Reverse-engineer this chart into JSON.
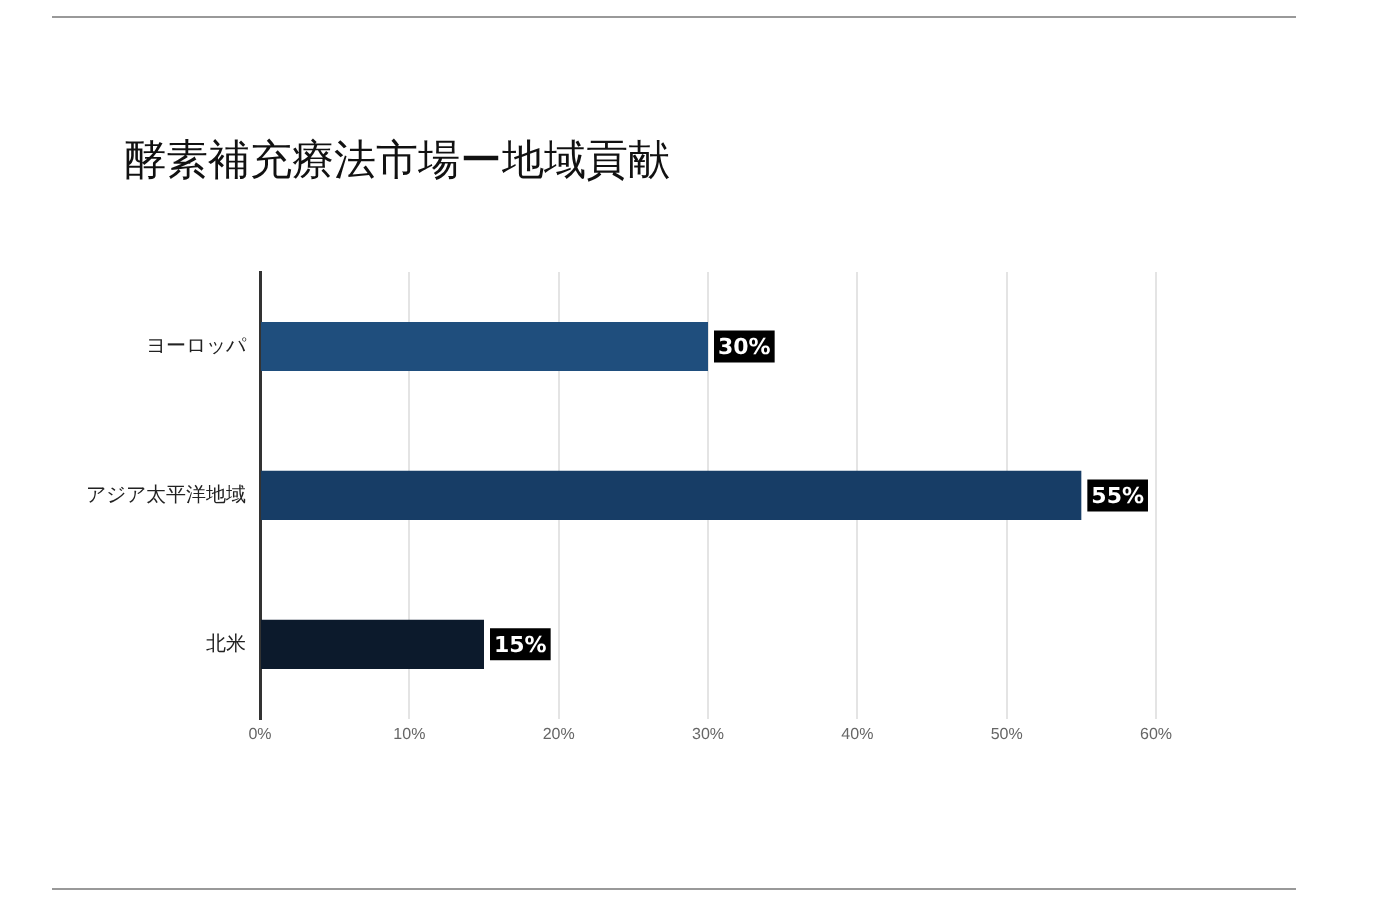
{
  "chart_data": {
    "type": "bar",
    "orientation": "horizontal",
    "title": "酵素補充療法市場ー地域貢献",
    "categories": [
      "ヨーロッパ",
      "アジア太平洋地域",
      "北米"
    ],
    "values": [
      30,
      55,
      15
    ],
    "colors": [
      "#1f4e7d",
      "#173d66",
      "#0c1a2c"
    ],
    "value_labels": [
      "30%",
      "55%",
      "15%"
    ],
    "xlim": [
      0,
      60
    ],
    "xticks": [
      {
        "value": 0,
        "label": "0%"
      },
      {
        "value": 10,
        "label": "10%"
      },
      {
        "value": 20,
        "label": "20%"
      },
      {
        "value": 30,
        "label": "30%"
      },
      {
        "value": 40,
        "label": "40%"
      },
      {
        "value": 50,
        "label": "50%"
      },
      {
        "value": 60,
        "label": "60%"
      }
    ],
    "grid": "x",
    "legend": false
  }
}
